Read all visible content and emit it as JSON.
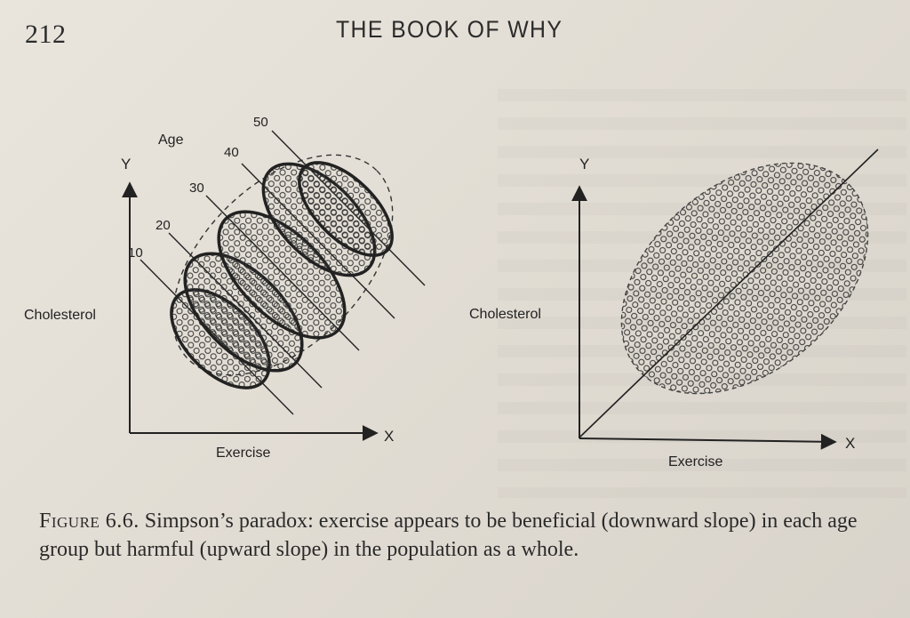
{
  "page": {
    "number": "212",
    "running_head": "THE BOOK OF WHY"
  },
  "figure": {
    "left_panel": {
      "y_axis_letter": "Y",
      "x_axis_letter": "X",
      "y_label": "Cholesterol",
      "x_label": "Exercise",
      "group_title": "Age",
      "age_groups": [
        "10",
        "20",
        "30",
        "40",
        "50"
      ]
    },
    "right_panel": {
      "y_axis_letter": "Y",
      "x_axis_letter": "X",
      "y_label": "Cholesterol",
      "x_label": "Exercise"
    }
  },
  "caption": {
    "label": "Figure 6.6.",
    "text": "Simpson’s paradox: exercise appears to be beneficial (downward slope) in each age group but harmful (upward slope) in the population as a whole."
  }
}
